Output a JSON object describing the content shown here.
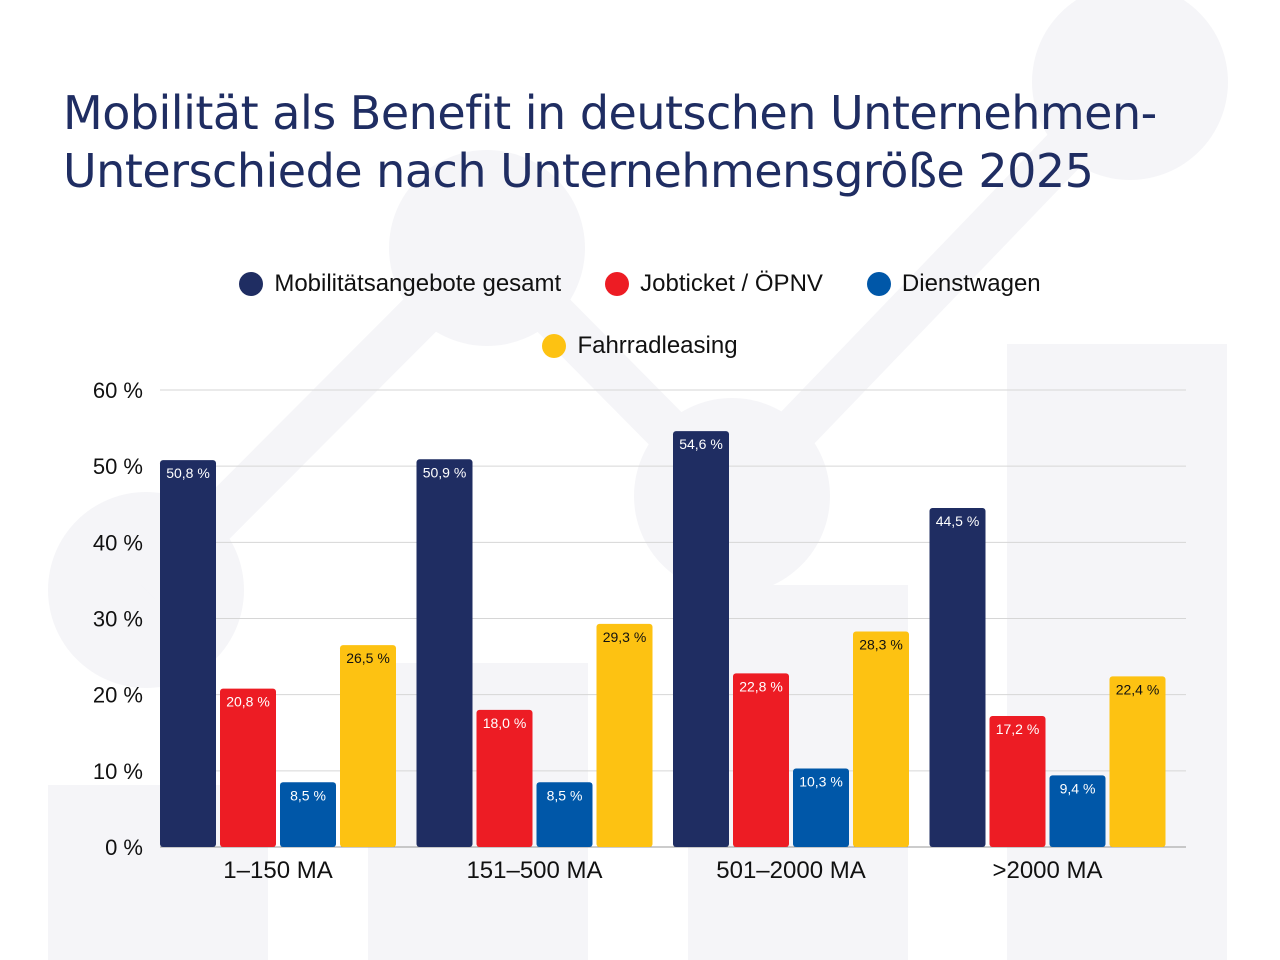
{
  "title": {
    "line1": "Mobilität als Benefit in deutschen Unternehmen-",
    "line2": "Unterschiede nach Unternehmensgröße 2025"
  },
  "legend": [
    {
      "label": "Mobilitätsangebote gesamt",
      "color": "#1f2d62"
    },
    {
      "label": "Jobticket / ÖPNV",
      "color": "#ed1c24"
    },
    {
      "label": "Dienstwagen",
      "color": "#0057a8"
    },
    {
      "label": "Fahrradleasing",
      "color": "#fdc212"
    }
  ],
  "chart_data": {
    "type": "bar",
    "title": "Mobilität als Benefit in deutschen Unternehmen- Unterschiede nach Unternehmensgröße 2025",
    "xlabel": "",
    "ylabel": "",
    "ylim": [
      0,
      60
    ],
    "yticks": [
      0,
      10,
      20,
      30,
      40,
      50,
      60
    ],
    "ytick_labels": [
      "0 %",
      "10 %",
      "20 %",
      "30 %",
      "40 %",
      "50 %",
      "60 %"
    ],
    "grid": true,
    "legend_position": "top-center",
    "categories": [
      "1–150 MA",
      "151–500 MA",
      "501–2000 MA",
      ">2000 MA"
    ],
    "series": [
      {
        "name": "Mobilitätsangebote gesamt",
        "color": "#1f2d62",
        "label_color": "#ffffff",
        "values": [
          50.8,
          50.9,
          54.6,
          44.5
        ],
        "labels": [
          "50,8 %",
          "50,9 %",
          "54,6 %",
          "44,5 %"
        ]
      },
      {
        "name": "Jobticket / ÖPNV",
        "color": "#ed1c24",
        "label_color": "#ffffff",
        "values": [
          20.8,
          18.0,
          22.8,
          17.2
        ],
        "labels": [
          "20,8 %",
          "18,0 %",
          "22,8 %",
          "17,2 %"
        ]
      },
      {
        "name": "Dienstwagen",
        "color": "#0057a8",
        "label_color": "#ffffff",
        "values": [
          8.5,
          8.5,
          10.3,
          9.4
        ],
        "labels": [
          "8,5 %",
          "8,5 %",
          "10,3 %",
          "9,4 %"
        ]
      },
      {
        "name": "Fahrradleasing",
        "color": "#fdc212",
        "label_color": "#111111",
        "values": [
          26.5,
          29.3,
          28.3,
          22.4
        ],
        "labels": [
          "26,5 %",
          "29,3 %",
          "28,3 %",
          "22,4 %"
        ]
      }
    ]
  }
}
